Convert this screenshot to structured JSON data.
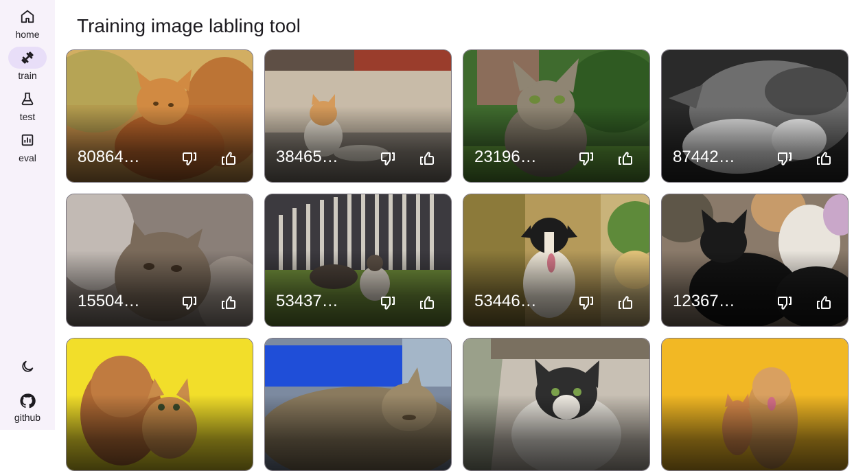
{
  "app": {
    "title": "Training image labling tool"
  },
  "nav": {
    "items": [
      {
        "label": "home",
        "icon": "home-icon"
      },
      {
        "label": "train",
        "icon": "dumbbell-icon",
        "active": true
      },
      {
        "label": "test",
        "icon": "flask-icon"
      },
      {
        "label": "eval",
        "icon": "chart-icon"
      }
    ],
    "theme_icon": "moon-icon",
    "github_label": "github"
  },
  "images": [
    {
      "id": "80864…",
      "subject": "orange cat"
    },
    {
      "id": "38465…",
      "subject": "orange cat on wall"
    },
    {
      "id": "23196…",
      "subject": "tabby cat in grass"
    },
    {
      "id": "87442…",
      "subject": "sleeping tabby cat"
    },
    {
      "id": "15504…",
      "subject": "grey tabby cat"
    },
    {
      "id": "53437…",
      "subject": "cats by fence"
    },
    {
      "id": "53446…",
      "subject": "dog in alley"
    },
    {
      "id": "12367…",
      "subject": "black kitten"
    },
    {
      "id": "",
      "subject": "poodle and kitten"
    },
    {
      "id": "",
      "subject": "sleeping tabby cat"
    },
    {
      "id": "",
      "subject": "tabby cat under bench"
    },
    {
      "id": "",
      "subject": "dog and kitten"
    }
  ],
  "colors": {
    "accent_pill": "#e8def8",
    "rail_bg": "#f7f2fa"
  }
}
